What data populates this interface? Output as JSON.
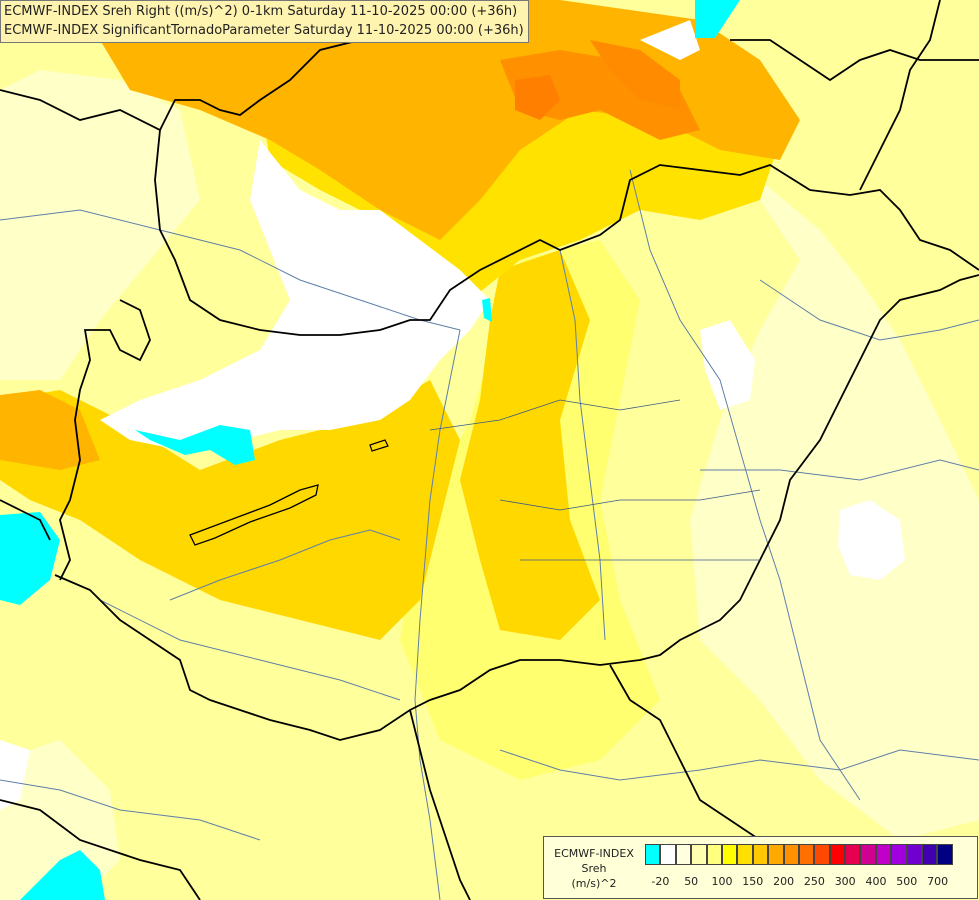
{
  "header": {
    "line1": "ECMWF-INDEX Sreh Right ((m/s)^2) 0-1km Saturday 11-10-2025 00:00 (+36h)",
    "line2": "ECMWF-INDEX SignificantTornadoParameter Saturday 11-10-2025 00:00 (+36h)"
  },
  "legend": {
    "title1": "ECMWF-INDEX",
    "title2": "Sreh",
    "title3": "(m/s)^2",
    "colors": [
      "#00ffff",
      "#ffffff",
      "#ffffe0",
      "#ffffb0",
      "#ffff80",
      "#ffff00",
      "#ffe000",
      "#ffc800",
      "#ffa800",
      "#ff9000",
      "#ff7000",
      "#ff4800",
      "#ff0000",
      "#e80050",
      "#d00090",
      "#c000c8",
      "#a000e0",
      "#7000d0",
      "#4000b0",
      "#000080"
    ],
    "labels": [
      "-20",
      "50",
      "100",
      "150",
      "200",
      "250",
      "300",
      "400",
      "500",
      "700"
    ]
  },
  "colors": {
    "cyan": "#00ffff",
    "white": "#ffffff",
    "pale": "#ffffc8",
    "light": "#ffff90",
    "yellow": "#ffee00",
    "gold": "#ffd000",
    "orange": "#ffb000",
    "dark_orange": "#ff8c00",
    "border": "#000000",
    "river": "#5f7fa8"
  }
}
